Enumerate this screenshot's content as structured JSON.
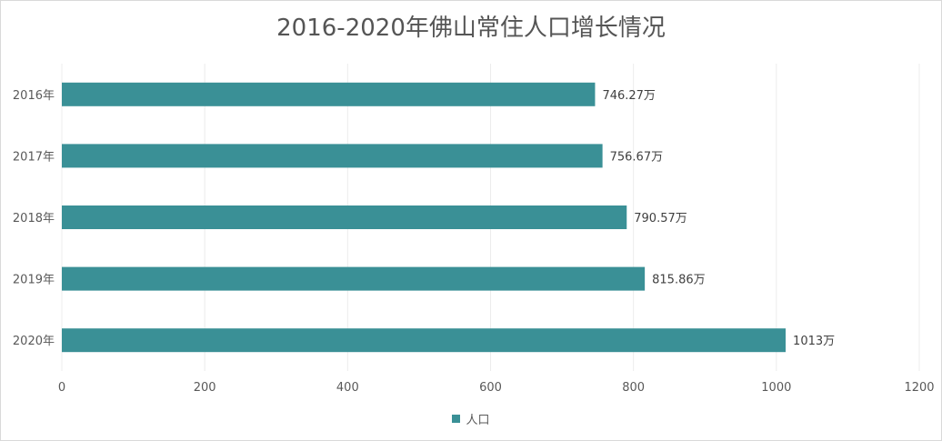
{
  "chart_data": {
    "type": "bar",
    "orientation": "horizontal",
    "title": "2016-2020年佛山常住人口增长情况",
    "categories": [
      "2016年",
      "2017年",
      "2018年",
      "2019年",
      "2020年"
    ],
    "series": [
      {
        "name": "人口",
        "values": [
          746.27,
          756.67,
          790.57,
          815.86,
          1013
        ],
        "data_labels": [
          "746.27万",
          "756.67万",
          "790.57万",
          "815.86万",
          "1013万"
        ]
      }
    ],
    "x_ticks": [
      "0",
      "200",
      "400",
      "600",
      "800",
      "1000",
      "1200"
    ],
    "xlim": [
      0,
      1200
    ],
    "grid": "vertical",
    "legend": "bottom",
    "bar_color": "#3a9096"
  }
}
